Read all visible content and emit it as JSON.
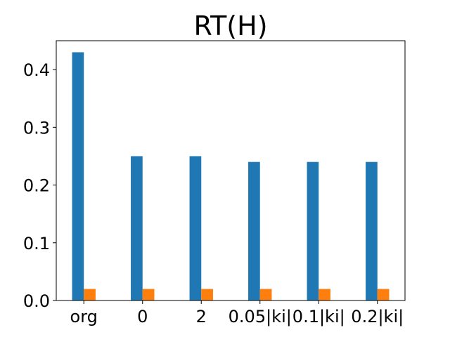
{
  "chart_data": {
    "type": "bar",
    "title": "RT(H)",
    "xlabel": "",
    "ylabel": "",
    "categories": [
      "org",
      "0",
      "2",
      "0.05|ki|",
      "0.1|ki|",
      "0.2|ki|"
    ],
    "series": [
      {
        "color": "#1f77b4",
        "values": [
          0.43,
          0.25,
          0.25,
          0.24,
          0.24,
          0.24
        ]
      },
      {
        "color": "#ff7f0e",
        "values": [
          0.02,
          0.02,
          0.02,
          0.02,
          0.02,
          0.02
        ]
      }
    ],
    "ylim": [
      0,
      0.45
    ],
    "yticks": [
      "0.0",
      "0.1",
      "0.2",
      "0.3",
      "0.4"
    ],
    "grid": false,
    "legend": "none"
  }
}
